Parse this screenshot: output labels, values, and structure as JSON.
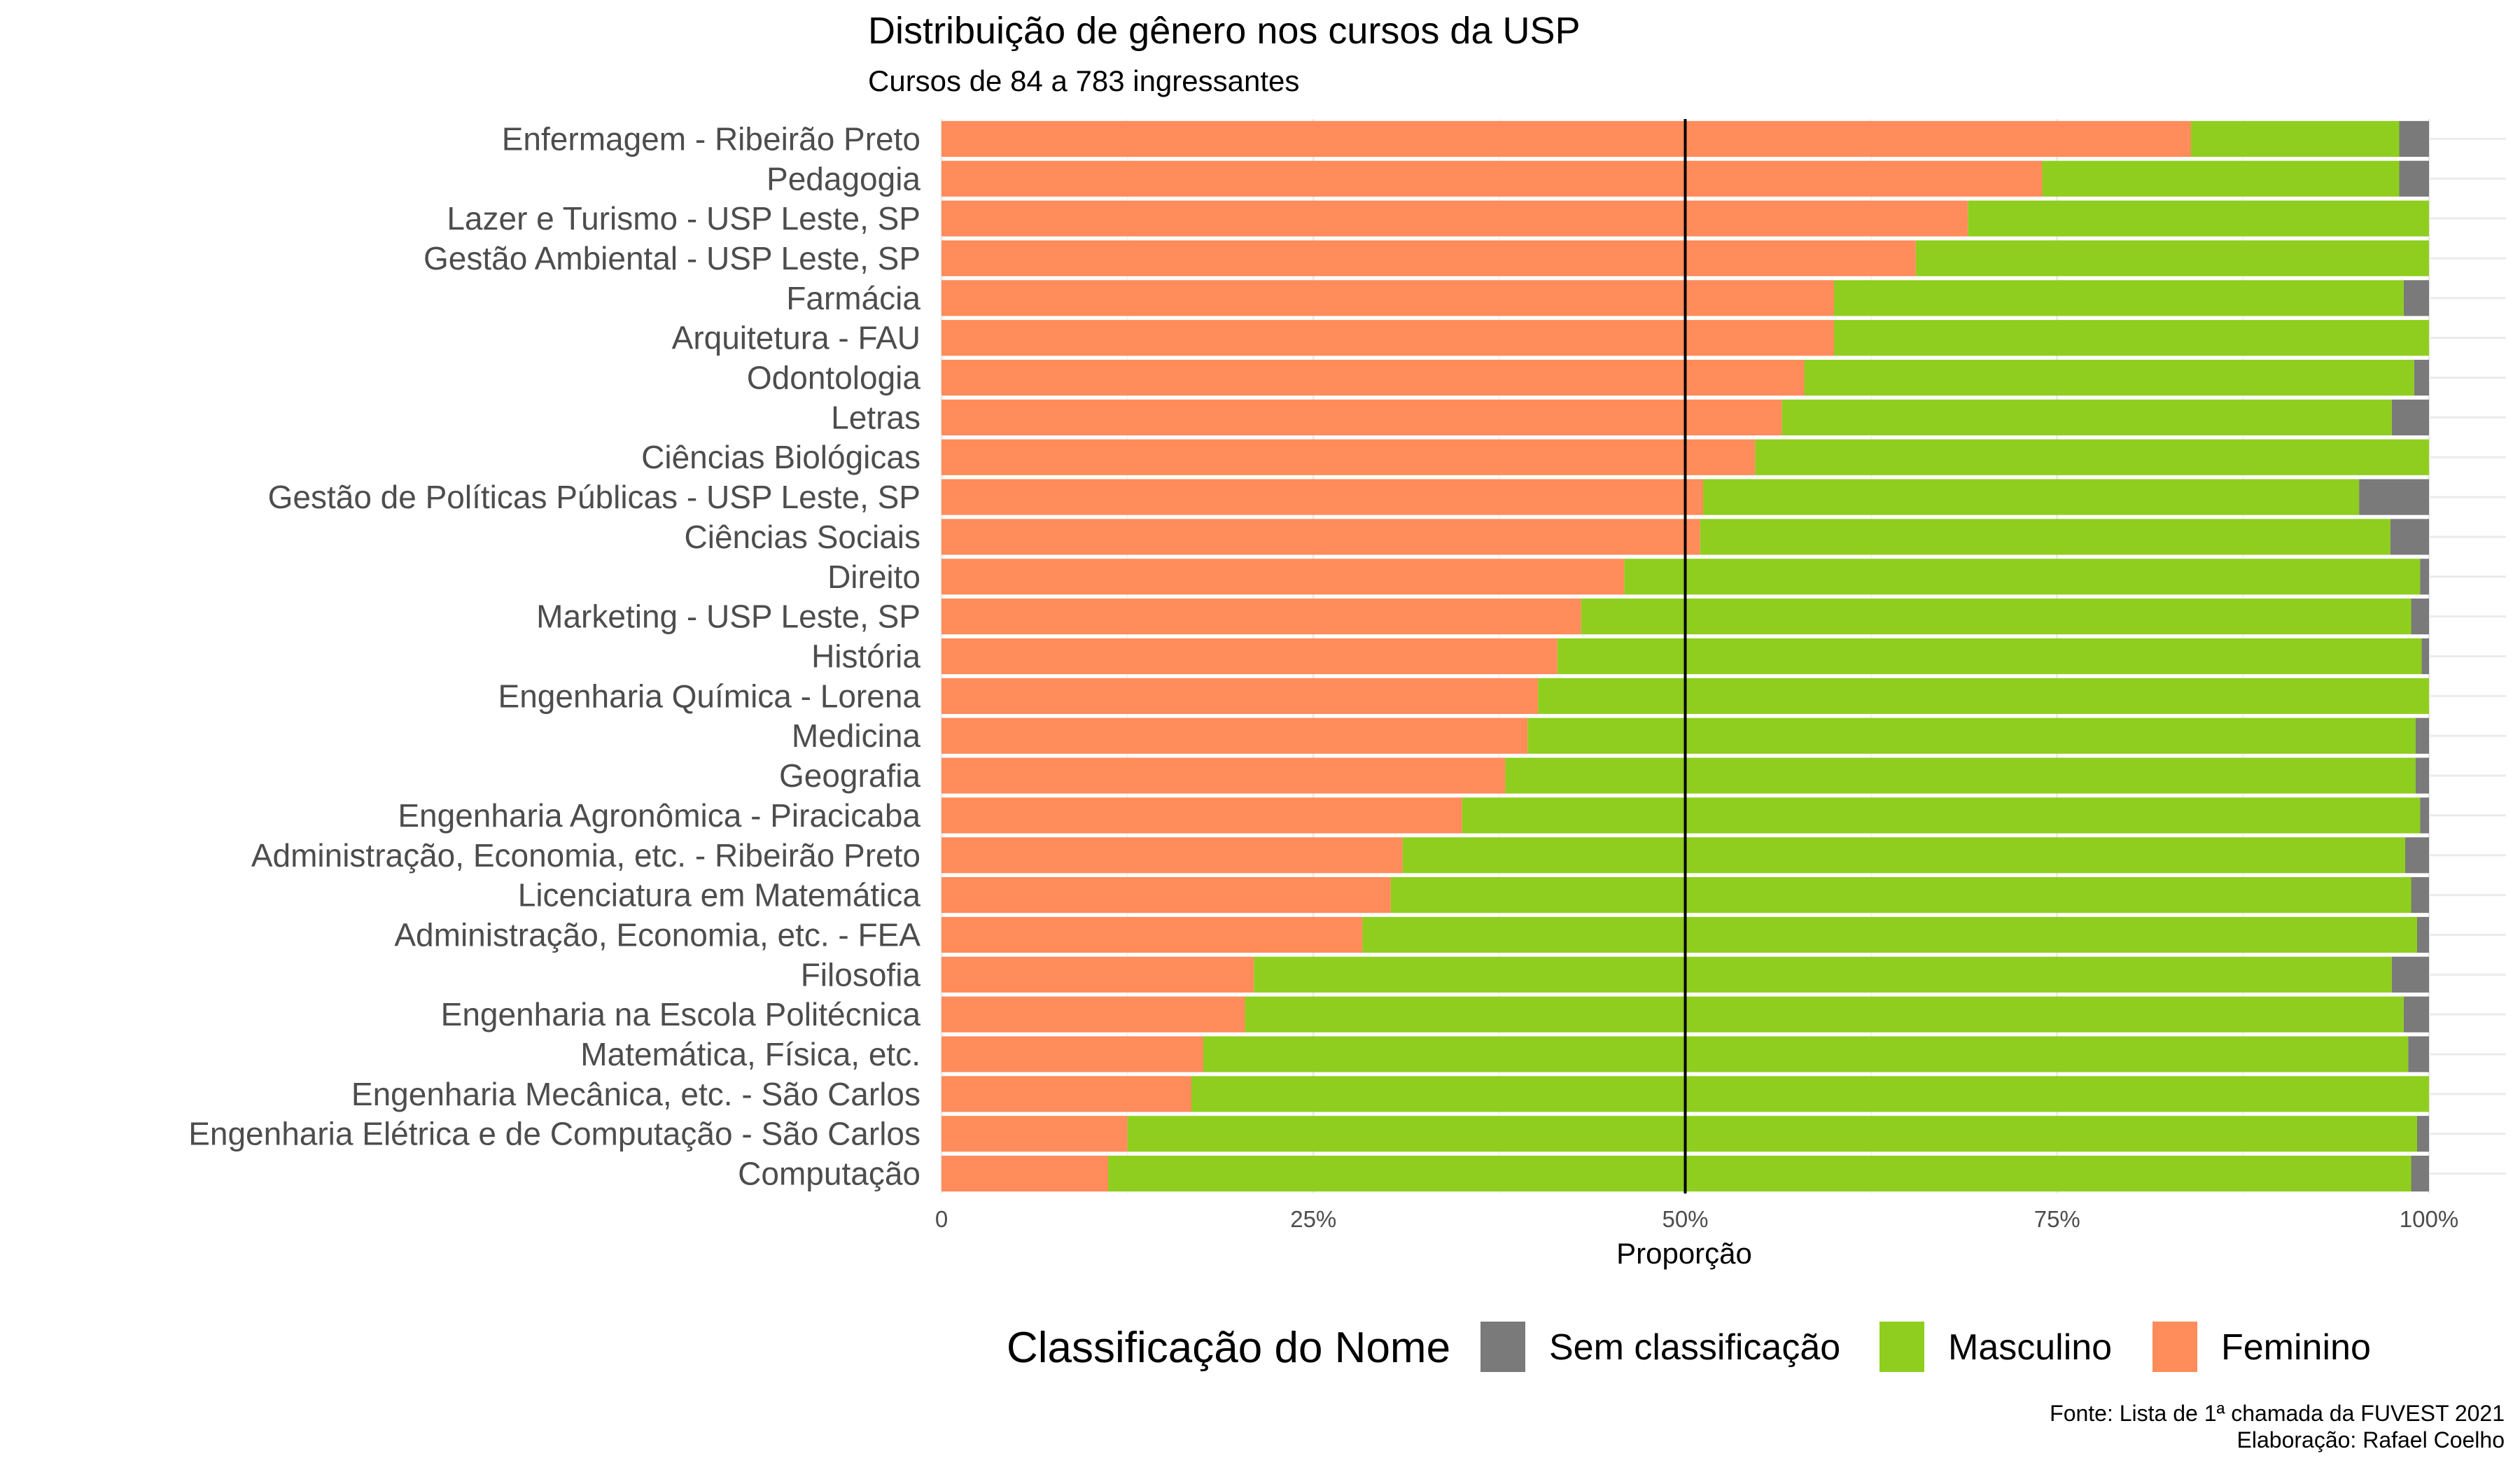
{
  "chart_data": {
    "type": "bar",
    "orientation": "horizontal",
    "stacked": "percent",
    "title": "Distribuição de gênero nos cursos da USP",
    "subtitle": "Cursos de 84 a 783 ingressantes",
    "xlabel": "Proporção",
    "ylabel": "",
    "xlim": [
      0,
      1
    ],
    "x_ticks": [
      "0",
      "25%",
      "50%",
      "75%",
      "100%"
    ],
    "x_tick_values": [
      0,
      0.25,
      0.5,
      0.75,
      1
    ],
    "reference_line": 0.5,
    "grid": true,
    "legend_title": "Classificação do Nome",
    "legend_position": "bottom",
    "categories": [
      "Enfermagem - Ribeirão Preto",
      "Pedagogia",
      "Lazer e Turismo - USP Leste, SP",
      "Gestão Ambiental - USP Leste, SP",
      "Farmácia",
      "Arquitetura - FAU",
      "Odontologia",
      "Letras",
      "Ciências Biológicas",
      "Gestão de Políticas Públicas - USP Leste, SP",
      "Ciências Sociais",
      "Direito",
      "Marketing - USP Leste, SP",
      "História",
      "Engenharia Química - Lorena",
      "Medicina",
      "Geografia",
      "Engenharia Agronômica - Piracicaba",
      "Administração, Economia, etc. - Ribeirão Preto",
      "Licenciatura em Matemática",
      "Administração, Economia, etc. - FEA",
      "Filosofia",
      "Engenharia na Escola Politécnica",
      "Matemática, Física, etc.",
      "Engenharia Mecânica, etc. - São Carlos",
      "Engenharia Elétrica e de Computação - São Carlos",
      "Computação"
    ],
    "series": [
      {
        "name": "Feminino",
        "color": "#ff8c5a",
        "values": [
          0.84,
          0.74,
          0.69,
          0.655,
          0.6,
          0.6,
          0.58,
          0.565,
          0.547,
          0.512,
          0.51,
          0.459,
          0.43,
          0.414,
          0.401,
          0.394,
          0.379,
          0.35,
          0.31,
          0.302,
          0.283,
          0.21,
          0.204,
          0.176,
          0.168,
          0.125,
          0.112
        ]
      },
      {
        "name": "Masculino",
        "color": "#8fce1e",
        "values": [
          0.14,
          0.24,
          0.31,
          0.345,
          0.383,
          0.4,
          0.41,
          0.41,
          0.453,
          0.441,
          0.464,
          0.535,
          0.558,
          0.581,
          0.599,
          0.597,
          0.612,
          0.644,
          0.674,
          0.686,
          0.709,
          0.765,
          0.779,
          0.81,
          0.832,
          0.867,
          0.876
        ]
      },
      {
        "name": "Sem classificação",
        "color": "#7a7a7a",
        "values": [
          0.02,
          0.02,
          0.0,
          0.0,
          0.017,
          0.0,
          0.01,
          0.025,
          0.0,
          0.047,
          0.026,
          0.006,
          0.012,
          0.005,
          0.0,
          0.009,
          0.009,
          0.006,
          0.016,
          0.012,
          0.008,
          0.025,
          0.017,
          0.014,
          0.0,
          0.008,
          0.012
        ]
      }
    ],
    "legend_order": [
      "Sem classificação",
      "Masculino",
      "Feminino"
    ],
    "caption_lines": [
      "Fonte: Lista de 1ª chamada da FUVEST 2021",
      "Elaboração: Rafael Coelho"
    ]
  }
}
